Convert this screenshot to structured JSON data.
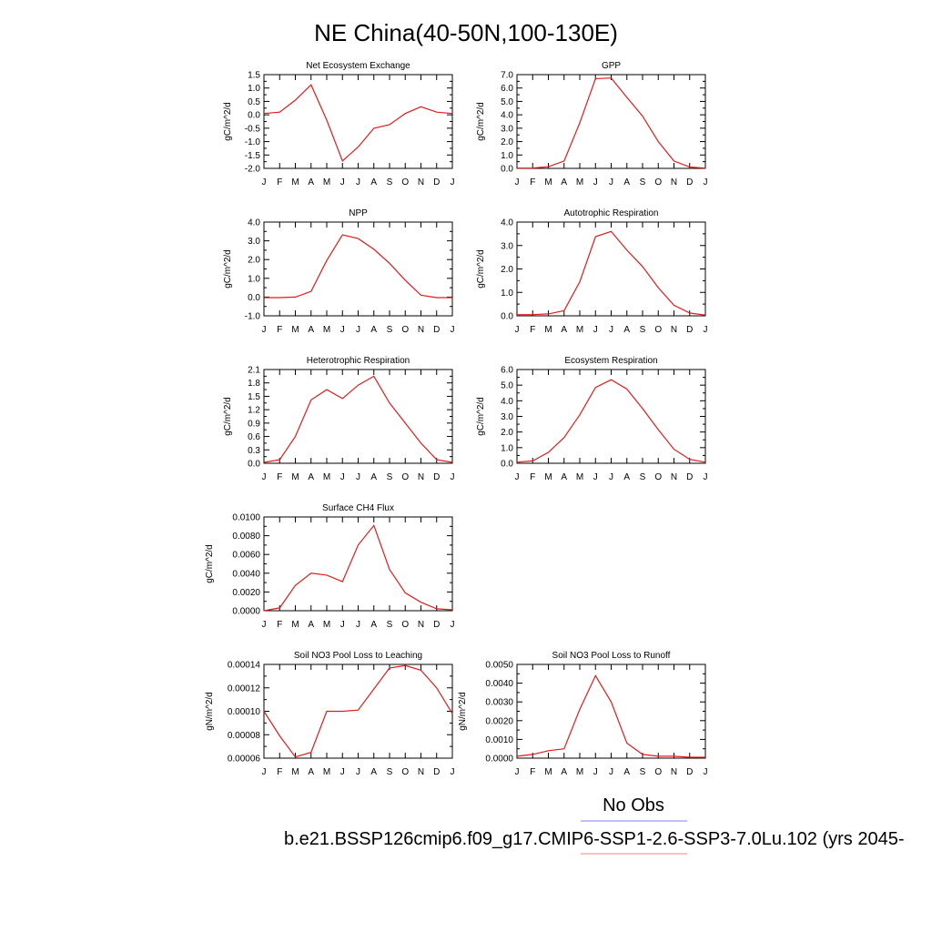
{
  "page_title": "NE China(40-50N,100-130E)",
  "month_labels": [
    "J",
    "F",
    "M",
    "A",
    "M",
    "J",
    "J",
    "A",
    "S",
    "O",
    "N",
    "D",
    "J"
  ],
  "line_color": "#e41a1c",
  "legend": {
    "obs_label": "No Obs",
    "obs_color": "#8080ff",
    "model_label": "b.e21.BSSP126cmip6.f09_g17.CMIP6-SSP1-2.6-SSP3-7.0Lu.102 (yrs 2045-",
    "model_color": "#ff8080"
  },
  "chart_data": [
    {
      "type": "line",
      "title": "Net Ecosystem Exchange",
      "ylabel": "gC/m^2/d",
      "ylim": [
        -2.0,
        1.5
      ],
      "yticks": [
        "1.5",
        "1.0",
        "0.5",
        "0.0",
        "-0.5",
        "-1.0",
        "-1.5",
        "-2.0"
      ],
      "values": [
        0.05,
        0.1,
        0.55,
        1.12,
        -0.2,
        -1.72,
        -1.2,
        -0.5,
        -0.37,
        0.05,
        0.3,
        0.1,
        0.05
      ]
    },
    {
      "type": "line",
      "title": "GPP",
      "ylabel": "gC/m^2/d",
      "ylim": [
        0.0,
        7.0
      ],
      "yticks": [
        "7.0",
        "6.0",
        "5.0",
        "4.0",
        "3.0",
        "2.0",
        "1.0",
        "0.0"
      ],
      "values": [
        0.02,
        0.03,
        0.12,
        0.55,
        3.4,
        6.7,
        6.75,
        5.3,
        3.9,
        2.0,
        0.55,
        0.1,
        0.02
      ]
    },
    {
      "type": "line",
      "title": "NPP",
      "ylabel": "gC/m^2/d",
      "ylim": [
        -1.0,
        4.0
      ],
      "yticks": [
        "4.0",
        "3.0",
        "2.0",
        "1.0",
        "0.0",
        "-1.0"
      ],
      "values": [
        -0.03,
        -0.03,
        0.0,
        0.3,
        1.95,
        3.32,
        3.12,
        2.55,
        1.8,
        0.9,
        0.1,
        -0.03,
        -0.03
      ]
    },
    {
      "type": "line",
      "title": "Autotrophic Respiration",
      "ylabel": "gC/m^2/d",
      "ylim": [
        0.0,
        4.0
      ],
      "yticks": [
        "4.0",
        "3.0",
        "2.0",
        "1.0",
        "0.0"
      ],
      "values": [
        0.05,
        0.05,
        0.08,
        0.22,
        1.45,
        3.38,
        3.6,
        2.8,
        2.1,
        1.2,
        0.45,
        0.12,
        0.03
      ]
    },
    {
      "type": "line",
      "title": "Heterotrophic Respiration",
      "ylabel": "gC/m^2/d",
      "ylim": [
        0.0,
        2.1
      ],
      "yticks": [
        "2.1",
        "1.8",
        "1.5",
        "1.2",
        "0.9",
        "0.6",
        "0.3",
        "0.0"
      ],
      "values": [
        0.02,
        0.08,
        0.6,
        1.42,
        1.65,
        1.45,
        1.75,
        1.95,
        1.35,
        0.9,
        0.45,
        0.08,
        0.02
      ]
    },
    {
      "type": "line",
      "title": "Ecosystem Respiration",
      "ylabel": "gC/m^2/d",
      "ylim": [
        0.0,
        6.0
      ],
      "yticks": [
        "6.0",
        "5.0",
        "4.0",
        "3.0",
        "2.0",
        "1.0",
        "0.0"
      ],
      "values": [
        0.07,
        0.15,
        0.7,
        1.65,
        3.1,
        4.85,
        5.35,
        4.75,
        3.5,
        2.15,
        0.9,
        0.25,
        0.07
      ]
    },
    {
      "type": "line",
      "title": "Surface CH4 Flux",
      "ylabel": "gC/m^2/d",
      "ylim": [
        0.0,
        0.01
      ],
      "yticks": [
        "0.0100",
        "0.0080",
        "0.0060",
        "0.0040",
        "0.0020",
        "0.0000"
      ],
      "values": [
        0.0,
        0.0003,
        0.0027,
        0.004,
        0.0038,
        0.0031,
        0.007,
        0.0091,
        0.0044,
        0.0019,
        0.0009,
        0.0002,
        0.0001
      ]
    },
    {
      "type": "line",
      "title": "Soil NO3 Pool Loss to Leaching",
      "ylabel": "gN/m^2/d",
      "ylim": [
        6e-05,
        0.00014
      ],
      "yticks": [
        "0.00014",
        "0.00012",
        "0.00010",
        "0.00008",
        "0.00006"
      ],
      "values": [
        0.0001,
        7.9e-05,
        6.1e-05,
        6.5e-05,
        0.0001,
        0.0001,
        0.000101,
        0.000119,
        0.000137,
        0.000139,
        0.000135,
        0.00012,
        9.8e-05
      ]
    },
    {
      "type": "line",
      "title": "Soil NO3 Pool Loss to Runoff",
      "ylabel": "gN/m^2/d",
      "ylim": [
        0.0,
        0.005
      ],
      "yticks": [
        "0.0050",
        "0.0040",
        "0.0030",
        "0.0020",
        "0.0010",
        "0.0000"
      ],
      "values": [
        0.0001,
        0.0002,
        0.0004,
        0.0005,
        0.0026,
        0.0044,
        0.003,
        0.0008,
        0.0002,
        0.0001,
        0.0001,
        5e-05,
        5e-05
      ]
    }
  ]
}
